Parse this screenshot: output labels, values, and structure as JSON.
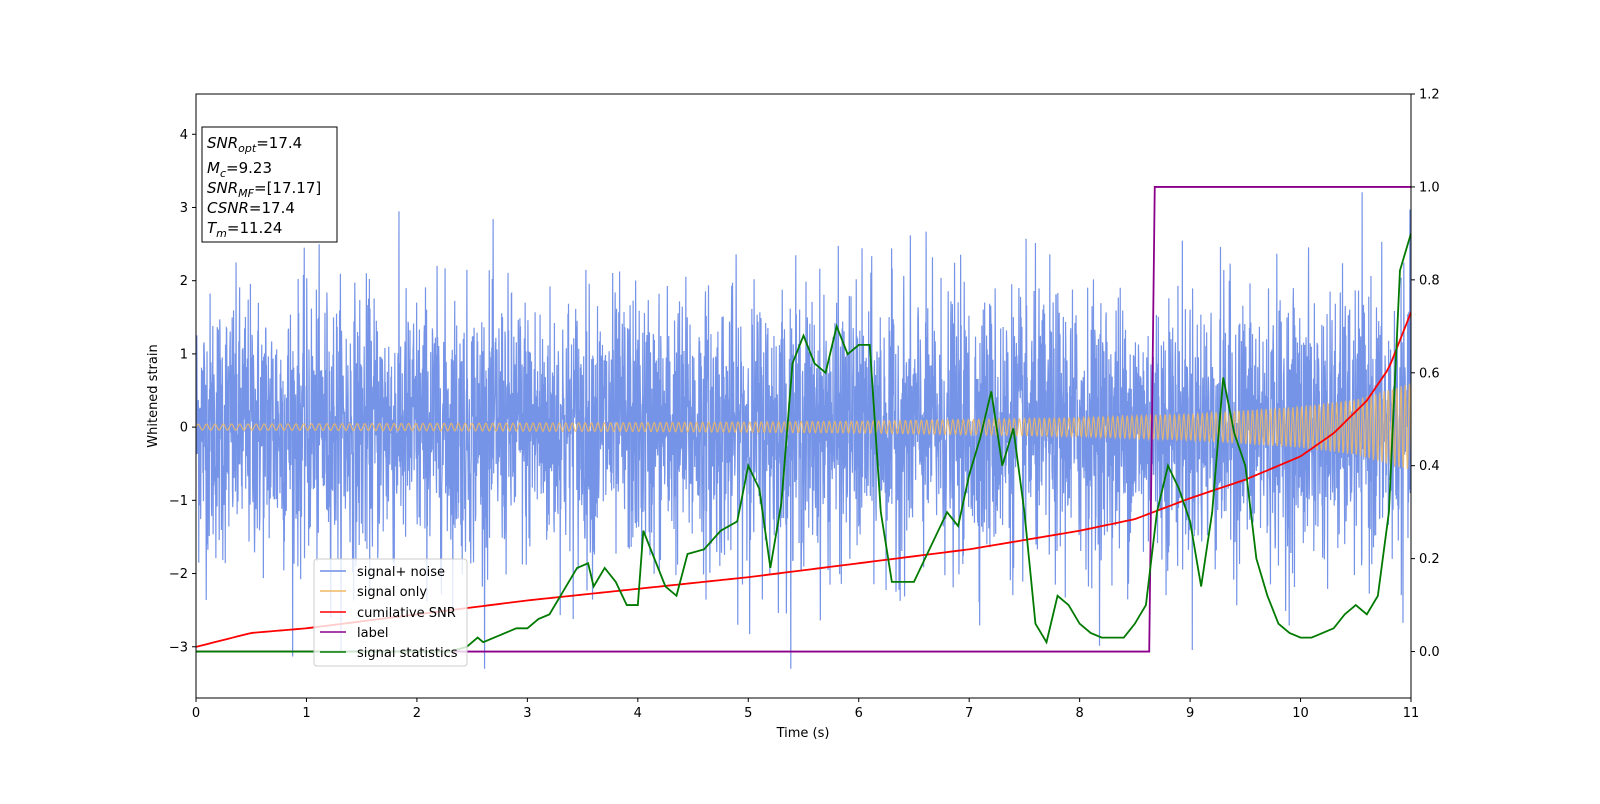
{
  "chart_data": {
    "type": "line",
    "title": "",
    "xlabel": "Time (s)",
    "ylabel": "Whitened strain",
    "y2label": "",
    "xlim": [
      0,
      11
    ],
    "ylim": [
      -3.7,
      4.55
    ],
    "y2lim": [
      -0.1,
      1.2
    ],
    "xticks": [
      0,
      1,
      2,
      3,
      4,
      5,
      6,
      7,
      8,
      9,
      10,
      11
    ],
    "yticks": [
      -3,
      -2,
      -1,
      0,
      1,
      2,
      3,
      4
    ],
    "y2ticks": [
      0.0,
      0.2,
      0.4,
      0.6,
      0.8,
      1.0,
      1.2
    ],
    "info_box": {
      "snr_opt": {
        "label": "SNR",
        "sub": "opt",
        "value": "=17.4"
      },
      "mc": {
        "label": "M",
        "sub": "c",
        "value": "=9.23"
      },
      "snr_mf": {
        "label": "SNR",
        "sub": "MF",
        "value": "=[17.17]"
      },
      "csnr": {
        "label": "CSNR",
        "value": "=17.4"
      },
      "tm": {
        "label": "T",
        "sub": "m",
        "value": "=11.24"
      }
    },
    "legend": {
      "position": "lower-left",
      "entries": [
        "signal+ noise",
        "signal only",
        "cumilative SNR",
        "label",
        "signal statistics"
      ]
    },
    "colors": {
      "signal_noise": "#6f8ee6",
      "signal_only": "#f0b865",
      "cumulative_snr": "#ff0000",
      "label": "#8b008b",
      "signal_statistics": "#007a00"
    },
    "series": [
      {
        "name": "signal+ noise",
        "axis": "left",
        "style": "noise",
        "description_level": {
          "sigma": 0.9,
          "max": 3.35,
          "min": -3.3
        }
      },
      {
        "name": "signal only",
        "axis": "left",
        "style": "chirp",
        "amplitude_envelope": {
          "x": [
            0,
            2,
            4,
            6,
            8,
            9,
            10,
            10.5,
            11
          ],
          "y": [
            0.04,
            0.05,
            0.06,
            0.08,
            0.13,
            0.18,
            0.28,
            0.38,
            0.6
          ]
        }
      },
      {
        "name": "cumilative SNR",
        "axis": "right",
        "x": [
          0,
          0.5,
          1,
          2,
          3,
          4,
          5,
          6,
          7,
          8,
          8.5,
          9,
          9.5,
          10,
          10.3,
          10.6,
          10.8,
          11
        ],
        "y": [
          0.01,
          0.04,
          0.05,
          0.08,
          0.11,
          0.135,
          0.16,
          0.19,
          0.22,
          0.26,
          0.285,
          0.33,
          0.37,
          0.42,
          0.47,
          0.54,
          0.61,
          0.73
        ]
      },
      {
        "name": "label",
        "axis": "right",
        "x": [
          0,
          8.63,
          8.68,
          11
        ],
        "y": [
          0.0,
          0.0,
          1.0,
          1.0
        ]
      },
      {
        "name": "signal statistics",
        "axis": "right",
        "x": [
          0,
          2.3,
          2.45,
          2.55,
          2.6,
          2.7,
          2.8,
          2.9,
          3.0,
          3.1,
          3.2,
          3.3,
          3.4,
          3.45,
          3.55,
          3.6,
          3.7,
          3.8,
          3.9,
          4.0,
          4.05,
          4.15,
          4.25,
          4.35,
          4.45,
          4.6,
          4.75,
          4.9,
          5.0,
          5.1,
          5.2,
          5.3,
          5.4,
          5.5,
          5.6,
          5.7,
          5.8,
          5.9,
          6.0,
          6.1,
          6.2,
          6.3,
          6.4,
          6.5,
          6.6,
          6.7,
          6.8,
          6.9,
          7.0,
          7.1,
          7.2,
          7.3,
          7.4,
          7.5,
          7.6,
          7.7,
          7.8,
          7.9,
          8.0,
          8.1,
          8.2,
          8.3,
          8.4,
          8.5,
          8.6,
          8.7,
          8.8,
          8.9,
          9.0,
          9.1,
          9.2,
          9.3,
          9.4,
          9.5,
          9.6,
          9.7,
          9.8,
          9.9,
          10.0,
          10.1,
          10.2,
          10.3,
          10.4,
          10.5,
          10.6,
          10.7,
          10.8,
          10.9,
          11.0
        ],
        "y": [
          0.0,
          0.0,
          0.01,
          0.03,
          0.02,
          0.03,
          0.04,
          0.05,
          0.05,
          0.07,
          0.08,
          0.12,
          0.16,
          0.18,
          0.19,
          0.14,
          0.18,
          0.15,
          0.1,
          0.1,
          0.26,
          0.2,
          0.14,
          0.12,
          0.21,
          0.22,
          0.26,
          0.28,
          0.4,
          0.35,
          0.18,
          0.32,
          0.62,
          0.68,
          0.62,
          0.6,
          0.7,
          0.64,
          0.66,
          0.66,
          0.3,
          0.15,
          0.15,
          0.15,
          0.2,
          0.25,
          0.3,
          0.27,
          0.38,
          0.46,
          0.56,
          0.4,
          0.48,
          0.3,
          0.06,
          0.02,
          0.12,
          0.1,
          0.06,
          0.04,
          0.03,
          0.03,
          0.03,
          0.06,
          0.1,
          0.3,
          0.4,
          0.35,
          0.28,
          0.14,
          0.3,
          0.59,
          0.47,
          0.4,
          0.2,
          0.12,
          0.06,
          0.04,
          0.03,
          0.03,
          0.04,
          0.05,
          0.08,
          0.1,
          0.08,
          0.12,
          0.3,
          0.82,
          0.9
        ]
      }
    ]
  }
}
